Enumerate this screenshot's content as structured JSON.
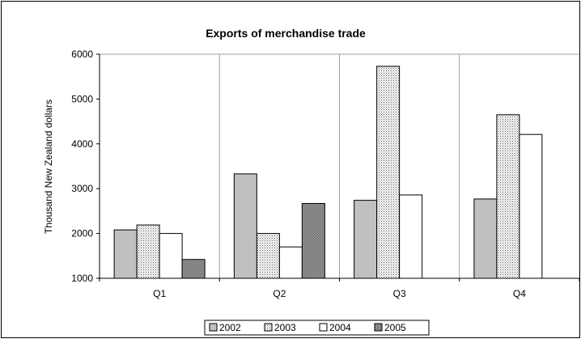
{
  "chart_data": {
    "type": "bar",
    "title": "Exports of merchandise trade",
    "xlabel": "",
    "ylabel": "Thousand New Zealand dollars",
    "categories": [
      "Q1",
      "Q2",
      "Q3",
      "Q4"
    ],
    "ylim": [
      1000,
      6000
    ],
    "yticks": [
      "1000",
      "2000",
      "3000",
      "4000",
      "5000",
      "6000"
    ],
    "grid": false,
    "legend_position": "bottom",
    "series": [
      {
        "name": "2002",
        "values": [
          2080,
          3330,
          2740,
          2770
        ],
        "color": "#c0c0c0",
        "pattern": "solid"
      },
      {
        "name": "2003",
        "values": [
          2190,
          2000,
          5730,
          4650
        ],
        "color": "#e6e6e6",
        "pattern": "dots"
      },
      {
        "name": "2004",
        "values": [
          2000,
          1700,
          2860,
          4210
        ],
        "color": "#ffffff",
        "pattern": "solid"
      },
      {
        "name": "2005",
        "values": [
          1420,
          2670,
          null,
          null
        ],
        "color": "#9a9a9a",
        "pattern": "checker"
      }
    ]
  }
}
